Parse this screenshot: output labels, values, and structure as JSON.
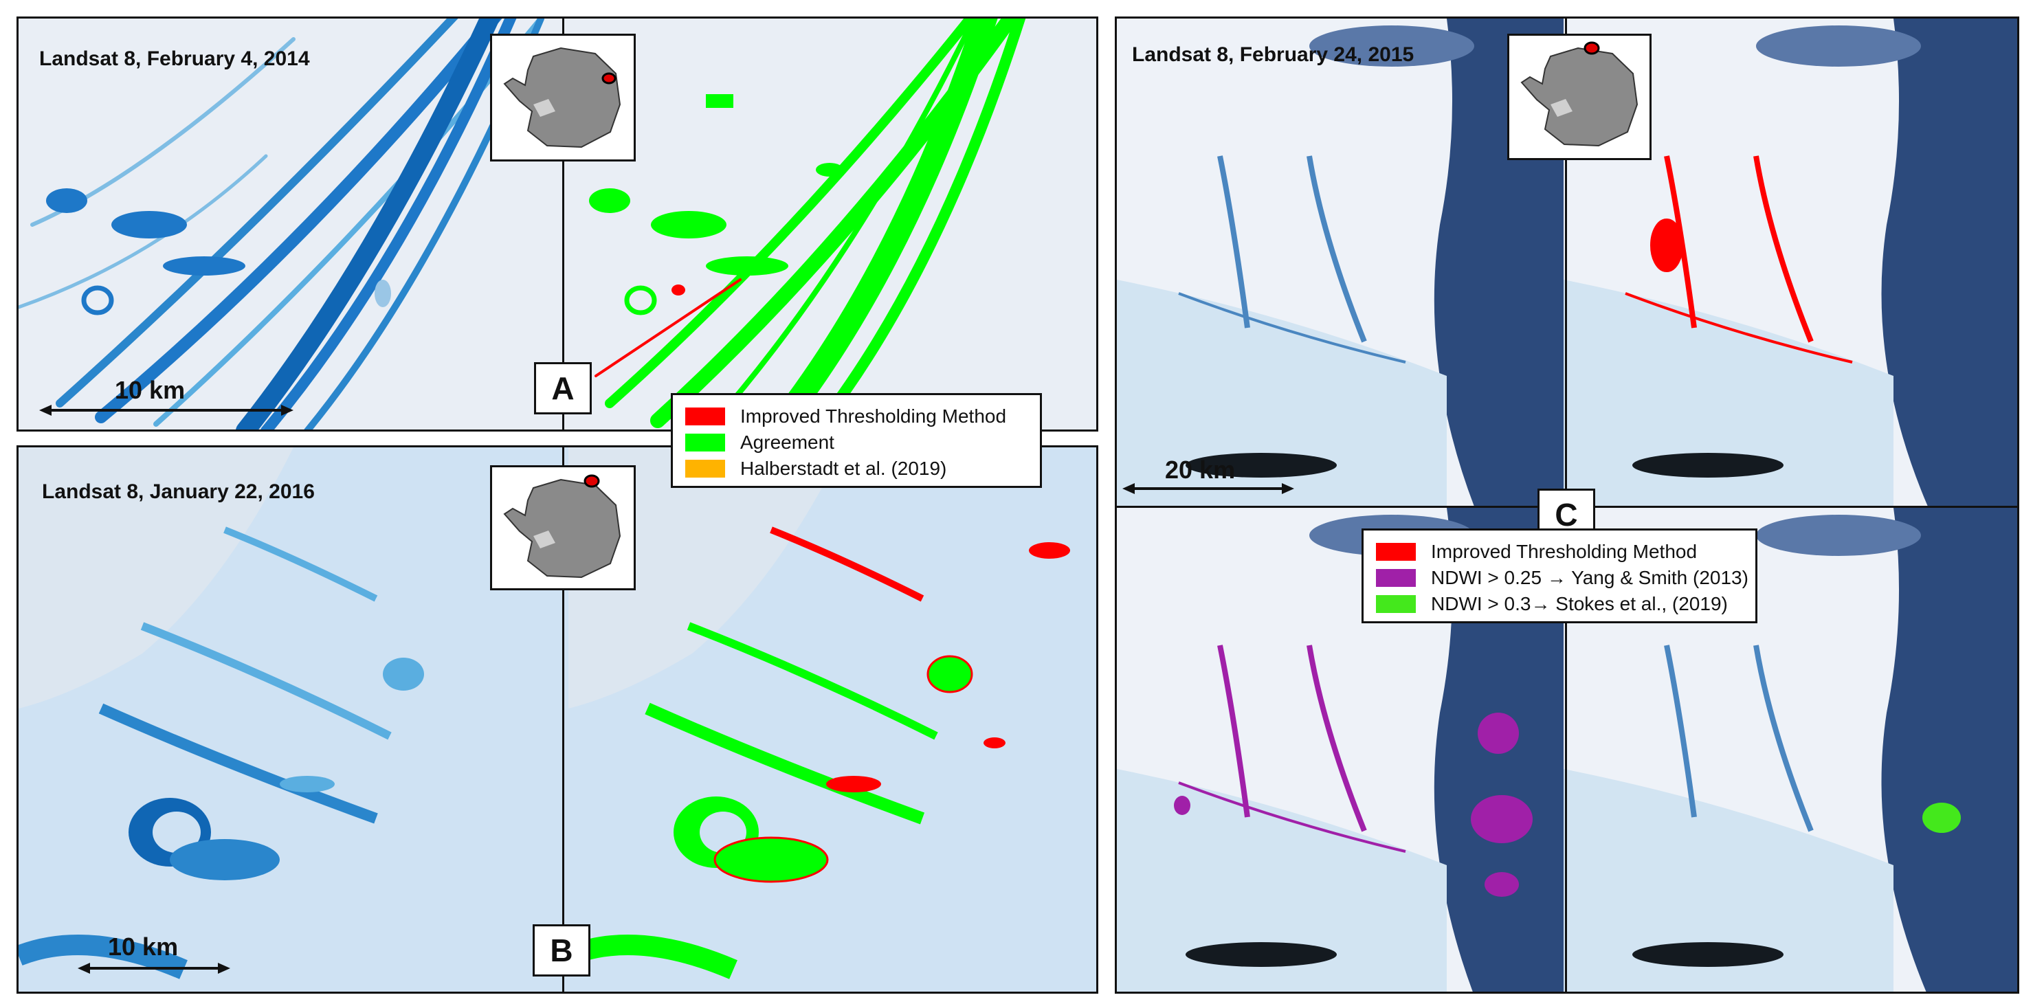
{
  "panels": {
    "a": {
      "caption": "Landsat 8, February 4, 2014",
      "letter": "A",
      "scale": "10 km"
    },
    "b": {
      "caption": "Landsat 8, January 22, 2016",
      "letter": "B",
      "scale": "10 km"
    },
    "c": {
      "caption": "Landsat 8, February 24, 2015",
      "letter": "C",
      "scale": "20 km"
    }
  },
  "legend_ab": [
    {
      "label": "Improved Thresholding Method",
      "color": "#ff0000"
    },
    {
      "label": "Agreement",
      "color": "#00ff00"
    },
    {
      "label": "Halberstadt et al. (2019)",
      "color": "#ffb300"
    }
  ],
  "legend_c": [
    {
      "label": "Improved Thresholding Method",
      "color": "#ff0000"
    },
    {
      "label": "NDWI > 0.25 → Yang & Smith (2013)",
      "color": "#a020a8"
    },
    {
      "label": "NDWI > 0.3→ Stokes et al., (2019)",
      "color": "#44e81c"
    }
  ],
  "colors": {
    "ice": "#e8eef6",
    "water": "#1e78c8",
    "light_water": "#5aaee0",
    "dark_cloud": "#1e3c6e",
    "rock": "#141a20"
  },
  "icons": {
    "location_inset": "antarctica-map-icon",
    "location_marker": "red-dot-icon"
  }
}
